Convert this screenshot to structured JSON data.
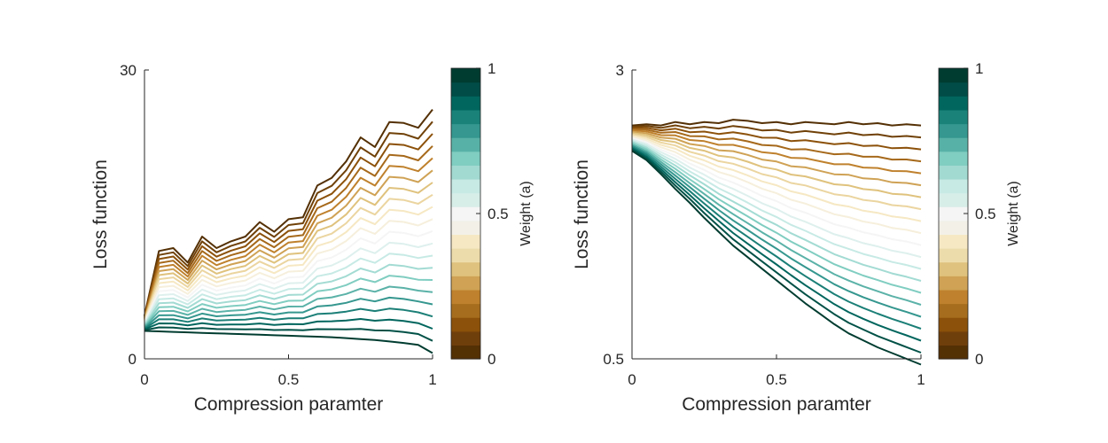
{
  "chart_data": [
    {
      "type": "line",
      "xlabel": "Compression paramter",
      "ylabel": "Loss function",
      "xlim": [
        0,
        1
      ],
      "ylim": [
        0,
        30
      ],
      "xticks": [
        "0",
        "0.5",
        "1"
      ],
      "yticks": [
        "0",
        "30"
      ],
      "x": [
        0,
        0.05,
        0.1,
        0.15,
        0.2,
        0.25,
        0.3,
        0.35,
        0.4,
        0.45,
        0.5,
        0.55,
        0.6,
        0.65,
        0.7,
        0.75,
        0.8,
        0.85,
        0.9,
        0.95,
        1
      ],
      "weight_scale": "Weight (a)",
      "series_rule": "loss = a * base + (1 - a) * top, a = 0, 0.05, ..., 1",
      "base": [
        2.9,
        2.85,
        2.8,
        2.75,
        2.7,
        2.65,
        2.6,
        2.55,
        2.5,
        2.45,
        2.4,
        2.35,
        2.3,
        2.25,
        2.15,
        2.05,
        1.95,
        1.8,
        1.65,
        1.45,
        0.6
      ],
      "top": [
        4.5,
        11.2,
        11.5,
        10.0,
        12.7,
        11.5,
        12.2,
        12.7,
        14.2,
        13.2,
        14.5,
        14.7,
        18.0,
        18.8,
        20.5,
        23.0,
        22.0,
        24.6,
        24.5,
        24.0,
        25.9
      ],
      "colorbar": {
        "label": "Weight (a)",
        "ticks": [
          "0",
          "0.5",
          "1"
        ],
        "colors": [
          "#543005",
          "#6f3f0b",
          "#8c510a",
          "#a66d1e",
          "#bf812d",
          "#cfa255",
          "#dfc27d",
          "#eddcab",
          "#f6e8c3",
          "#f2f0e7",
          "#f5f5f5",
          "#d7ede8",
          "#c7eae5",
          "#a2d9d0",
          "#80cdc1",
          "#58b1a6",
          "#35978f",
          "#1a8279",
          "#01665e",
          "#014c46",
          "#003c30"
        ]
      }
    },
    {
      "type": "line",
      "xlabel": "Compression paramter",
      "ylabel": "Loss function",
      "xlim": [
        0,
        1
      ],
      "ylim": [
        0.5,
        3
      ],
      "xticks": [
        "0",
        "0.5",
        "1"
      ],
      "yticks": [
        "0.5",
        "3"
      ],
      "x": [
        0,
        0.05,
        0.1,
        0.15,
        0.2,
        0.25,
        0.3,
        0.35,
        0.4,
        0.45,
        0.5,
        0.55,
        0.6,
        0.65,
        0.7,
        0.75,
        0.8,
        0.85,
        0.9,
        0.95,
        1
      ],
      "weight_scale": "Weight (a)",
      "series_rule": "loss = a * base + (1 - a) * top, a = 0, 0.05, ..., 1",
      "base": [
        2.3,
        2.22,
        2.1,
        1.97,
        1.85,
        1.72,
        1.6,
        1.48,
        1.38,
        1.28,
        1.18,
        1.08,
        0.98,
        0.89,
        0.8,
        0.72,
        0.66,
        0.6,
        0.55,
        0.5,
        0.45
      ],
      "top": [
        2.52,
        2.53,
        2.52,
        2.55,
        2.53,
        2.55,
        2.54,
        2.57,
        2.56,
        2.54,
        2.55,
        2.53,
        2.55,
        2.54,
        2.53,
        2.55,
        2.53,
        2.54,
        2.52,
        2.53,
        2.52
      ],
      "colorbar": {
        "label": "Weight (a)",
        "ticks": [
          "0",
          "0.5",
          "1"
        ],
        "colors": [
          "#543005",
          "#6f3f0b",
          "#8c510a",
          "#a66d1e",
          "#bf812d",
          "#cfa255",
          "#dfc27d",
          "#eddcab",
          "#f6e8c3",
          "#f2f0e7",
          "#f5f5f5",
          "#d7ede8",
          "#c7eae5",
          "#a2d9d0",
          "#80cdc1",
          "#58b1a6",
          "#35978f",
          "#1a8279",
          "#01665e",
          "#014c46",
          "#003c30"
        ]
      }
    }
  ]
}
